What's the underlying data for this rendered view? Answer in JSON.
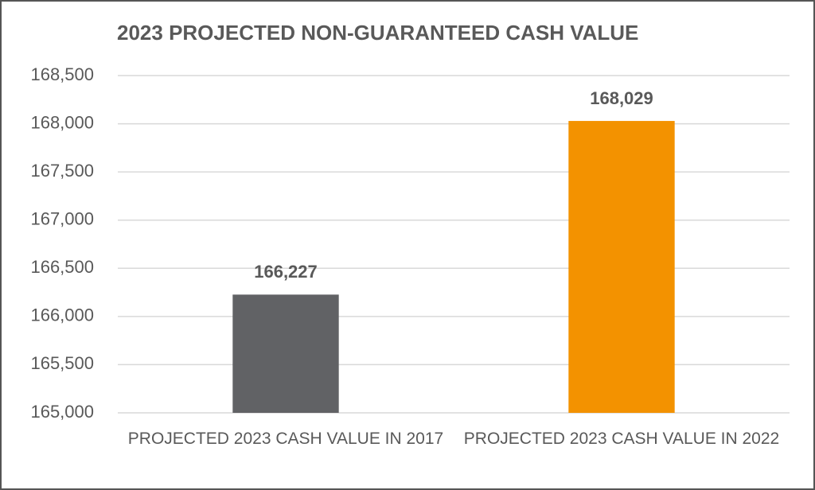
{
  "chart_data": {
    "type": "bar",
    "title": "2023 PROJECTED NON-GUARANTEED CASH VALUE",
    "categories": [
      "PROJECTED 2023 CASH VALUE IN 2017",
      "PROJECTED 2023 CASH VALUE IN 2022"
    ],
    "values": [
      166227,
      168029
    ],
    "value_labels": [
      "166,227",
      "168,029"
    ],
    "colors": [
      "#616265",
      "#f39200"
    ],
    "ylim": [
      165000,
      168500
    ],
    "yticks": [
      {
        "value": 165000,
        "label": "165,000"
      },
      {
        "value": 165500,
        "label": "165,500"
      },
      {
        "value": 166000,
        "label": "166,000"
      },
      {
        "value": 166500,
        "label": "166,500"
      },
      {
        "value": 167000,
        "label": "167,000"
      },
      {
        "value": 167500,
        "label": "167,500"
      },
      {
        "value": 168000,
        "label": "168,000"
      },
      {
        "value": 168500,
        "label": "168,500"
      }
    ],
    "grid": true
  }
}
